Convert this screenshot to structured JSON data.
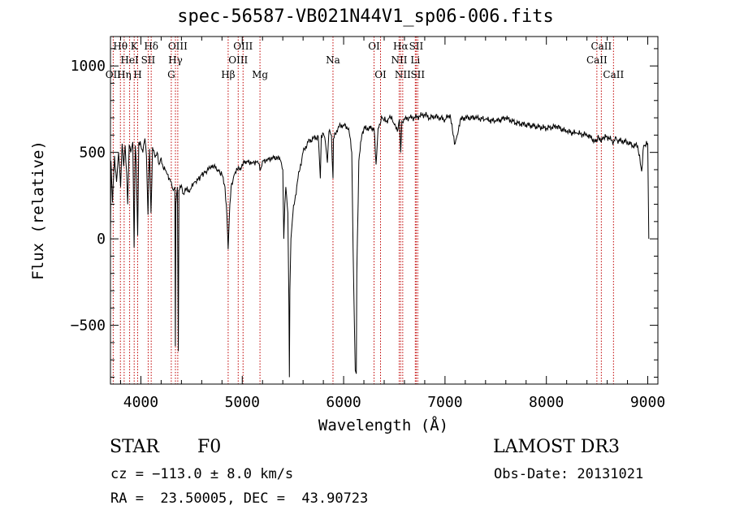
{
  "header": {
    "title": "spec-56587-VB021N44V1_sp06-006.fits"
  },
  "footer": {
    "object_class": "STAR",
    "subclass": "F0",
    "survey": "LAMOST DR3",
    "redshift": "cz = −113.0 ± 8.0 km/s",
    "obs_date": "Obs-Date: 20131021",
    "coords": "RA =  23.50005, DEC =  43.90723"
  },
  "chart_data": {
    "type": "line",
    "xlabel": "Wavelength (Å)",
    "ylabel": "Flux (relative)",
    "xlim": [
      3700,
      9100
    ],
    "ylim": [
      -840,
      1170
    ],
    "xticks": [
      4000,
      5000,
      6000,
      7000,
      8000,
      9000
    ],
    "yticks": [
      -500,
      0,
      500,
      1000
    ],
    "ytick_labels": [
      "−500",
      "0",
      "500",
      "1000"
    ],
    "grid": false,
    "colors": {
      "spectrum": "#000000",
      "line_markers": "#c00000"
    },
    "spectrum": [
      [
        3700,
        0
      ],
      [
        3705,
        450
      ],
      [
        3720,
        210
      ],
      [
        3740,
        480
      ],
      [
        3760,
        330
      ],
      [
        3780,
        500
      ],
      [
        3800,
        300
      ],
      [
        3815,
        550
      ],
      [
        3830,
        420
      ],
      [
        3845,
        540
      ],
      [
        3860,
        380
      ],
      [
        3870,
        200
      ],
      [
        3885,
        540
      ],
      [
        3900,
        500
      ],
      [
        3920,
        560
      ],
      [
        3933,
        -50
      ],
      [
        3945,
        540
      ],
      [
        3955,
        430
      ],
      [
        3968,
        20
      ],
      [
        3980,
        560
      ],
      [
        4000,
        540
      ],
      [
        4020,
        500
      ],
      [
        4040,
        580
      ],
      [
        4055,
        480
      ],
      [
        4070,
        140
      ],
      [
        4085,
        520
      ],
      [
        4100,
        150
      ],
      [
        4115,
        530
      ],
      [
        4140,
        470
      ],
      [
        4160,
        500
      ],
      [
        4180,
        430
      ],
      [
        4200,
        470
      ],
      [
        4220,
        410
      ],
      [
        4250,
        390
      ],
      [
        4280,
        350
      ],
      [
        4300,
        330
      ],
      [
        4320,
        280
      ],
      [
        4335,
        300
      ],
      [
        4340,
        -620
      ],
      [
        4345,
        200
      ],
      [
        4360,
        300
      ],
      [
        4370,
        -650
      ],
      [
        4375,
        280
      ],
      [
        4400,
        310
      ],
      [
        4420,
        260
      ],
      [
        4450,
        290
      ],
      [
        4480,
        270
      ],
      [
        4500,
        300
      ],
      [
        4530,
        330
      ],
      [
        4560,
        340
      ],
      [
        4600,
        370
      ],
      [
        4640,
        390
      ],
      [
        4680,
        410
      ],
      [
        4720,
        420
      ],
      [
        4760,
        400
      ],
      [
        4800,
        370
      ],
      [
        4830,
        300
      ],
      [
        4850,
        120
      ],
      [
        4861,
        -60
      ],
      [
        4872,
        120
      ],
      [
        4890,
        300
      ],
      [
        4920,
        370
      ],
      [
        4950,
        400
      ],
      [
        4980,
        410
      ],
      [
        5010,
        440
      ],
      [
        5050,
        450
      ],
      [
        5100,
        440
      ],
      [
        5150,
        450
      ],
      [
        5180,
        400
      ],
      [
        5200,
        450
      ],
      [
        5250,
        460
      ],
      [
        5300,
        470
      ],
      [
        5350,
        470
      ],
      [
        5380,
        450
      ],
      [
        5400,
        400
      ],
      [
        5410,
        0
      ],
      [
        5420,
        200
      ],
      [
        5430,
        300
      ],
      [
        5450,
        150
      ],
      [
        5460,
        -380
      ],
      [
        5465,
        -800
      ],
      [
        5470,
        -300
      ],
      [
        5480,
        0
      ],
      [
        5500,
        150
      ],
      [
        5550,
        350
      ],
      [
        5600,
        500
      ],
      [
        5650,
        560
      ],
      [
        5700,
        580
      ],
      [
        5750,
        590
      ],
      [
        5770,
        350
      ],
      [
        5780,
        600
      ],
      [
        5800,
        610
      ],
      [
        5820,
        560
      ],
      [
        5840,
        440
      ],
      [
        5855,
        620
      ],
      [
        5880,
        600
      ],
      [
        5895,
        350
      ],
      [
        5900,
        580
      ],
      [
        5950,
        650
      ],
      [
        6000,
        660
      ],
      [
        6050,
        640
      ],
      [
        6080,
        500
      ],
      [
        6100,
        -300
      ],
      [
        6115,
        -760
      ],
      [
        6125,
        -780
      ],
      [
        6130,
        -200
      ],
      [
        6150,
        450
      ],
      [
        6180,
        600
      ],
      [
        6200,
        640
      ],
      [
        6250,
        640
      ],
      [
        6300,
        640
      ],
      [
        6320,
        430
      ],
      [
        6340,
        640
      ],
      [
        6380,
        700
      ],
      [
        6420,
        680
      ],
      [
        6450,
        700
      ],
      [
        6480,
        690
      ],
      [
        6500,
        660
      ],
      [
        6530,
        620
      ],
      [
        6550,
        690
      ],
      [
        6563,
        500
      ],
      [
        6575,
        680
      ],
      [
        6600,
        690
      ],
      [
        6650,
        700
      ],
      [
        6700,
        700
      ],
      [
        6750,
        710
      ],
      [
        6800,
        720
      ],
      [
        6850,
        700
      ],
      [
        6900,
        710
      ],
      [
        6950,
        700
      ],
      [
        7000,
        690
      ],
      [
        7050,
        720
      ],
      [
        7080,
        600
      ],
      [
        7100,
        550
      ],
      [
        7120,
        600
      ],
      [
        7150,
        690
      ],
      [
        7200,
        700
      ],
      [
        7300,
        700
      ],
      [
        7400,
        690
      ],
      [
        7500,
        680
      ],
      [
        7600,
        700
      ],
      [
        7700,
        670
      ],
      [
        7800,
        660
      ],
      [
        7900,
        650
      ],
      [
        8000,
        640
      ],
      [
        8100,
        650
      ],
      [
        8200,
        620
      ],
      [
        8300,
        610
      ],
      [
        8400,
        600
      ],
      [
        8498,
        560
      ],
      [
        8510,
        600
      ],
      [
        8542,
        560
      ],
      [
        8560,
        590
      ],
      [
        8600,
        590
      ],
      [
        8662,
        560
      ],
      [
        8680,
        590
      ],
      [
        8700,
        570
      ],
      [
        8800,
        560
      ],
      [
        8850,
        540
      ],
      [
        8900,
        540
      ],
      [
        8940,
        390
      ],
      [
        8960,
        540
      ],
      [
        9000,
        550
      ],
      [
        9010,
        0
      ]
    ],
    "absorption_lines": [
      {
        "x": 3727,
        "label": "OII",
        "row": 3
      },
      {
        "x": 3798,
        "label": "Hθ",
        "row": 1
      },
      {
        "x": 3835,
        "label": "Hη",
        "row": 3
      },
      {
        "x": 3889,
        "label": "HeI",
        "row": 2
      },
      {
        "x": 3934,
        "label": "K",
        "row": 1
      },
      {
        "x": 3968,
        "label": "H",
        "row": 3
      },
      {
        "x": 4072,
        "label": "SII",
        "row": 2
      },
      {
        "x": 4102,
        "label": "Hδ",
        "row": 1
      },
      {
        "x": 4300,
        "label": "G",
        "row": 3
      },
      {
        "x": 4341,
        "label": "Hγ",
        "row": 2
      },
      {
        "x": 4364,
        "label": "OIII",
        "row": 1
      },
      {
        "x": 4861,
        "label": "Hβ",
        "row": 3
      },
      {
        "x": 4960,
        "label": "OIII",
        "row": 2
      },
      {
        "x": 5008,
        "label": "OIII",
        "row": 1
      },
      {
        "x": 5175,
        "label": "Mg",
        "row": 3
      },
      {
        "x": 5895,
        "label": "Na",
        "row": 2
      },
      {
        "x": 6300,
        "label": "OI",
        "row": 1
      },
      {
        "x": 6364,
        "label": "OI",
        "row": 3
      },
      {
        "x": 6548,
        "label": "NII",
        "row": 2
      },
      {
        "x": 6563,
        "label": "Hα",
        "row": 1
      },
      {
        "x": 6583,
        "label": "NII",
        "row": 3
      },
      {
        "x": 6707,
        "label": "Li",
        "row": 2
      },
      {
        "x": 6716,
        "label": "SII",
        "row": 1
      },
      {
        "x": 6731,
        "label": "SII",
        "row": 3
      },
      {
        "x": 8498,
        "label": "CaII",
        "row": 2
      },
      {
        "x": 8542,
        "label": "CaII",
        "row": 1
      },
      {
        "x": 8662,
        "label": "CaII",
        "row": 3
      }
    ]
  }
}
